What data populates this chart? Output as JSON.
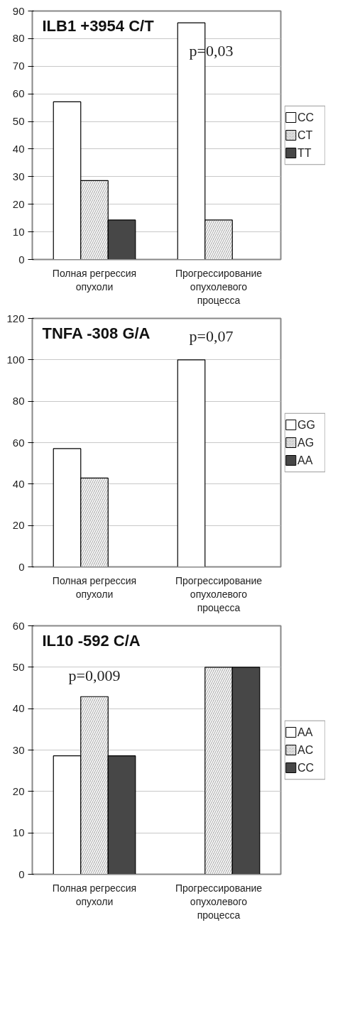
{
  "chart_data": [
    {
      "type": "bar",
      "title": "ILB1 +3954 C/T",
      "categories": [
        "Полная регрессия опухоли",
        "Прогрессирование опухолевого процесса"
      ],
      "series": [
        {
          "name": "CC",
          "color": "#ffffff",
          "values": [
            57.1,
            85.7
          ]
        },
        {
          "name": "CT",
          "color": "#b4b4b4",
          "values": [
            28.6,
            14.3
          ]
        },
        {
          "name": "TT",
          "color": "#474747",
          "values": [
            14.3,
            0
          ]
        }
      ],
      "ylim": [
        0,
        90
      ],
      "yticks": [
        0,
        10,
        20,
        30,
        40,
        50,
        60,
        70,
        80,
        90
      ],
      "grid": "y",
      "legend": "right",
      "annotations": [
        "p=0,03"
      ]
    },
    {
      "type": "bar",
      "title": "TNFA -308 G/A",
      "categories": [
        "Полная регрессия опухоли",
        "Прогрессирование опухолевого процесса"
      ],
      "series": [
        {
          "name": "GG",
          "color": "#ffffff",
          "values": [
            57.1,
            100
          ]
        },
        {
          "name": "AG",
          "color": "#b4b4b4",
          "values": [
            42.9,
            0
          ]
        },
        {
          "name": "AA",
          "color": "#474747",
          "values": [
            0,
            0
          ]
        }
      ],
      "ylim": [
        0,
        120
      ],
      "yticks": [
        0,
        20,
        40,
        60,
        80,
        100,
        120
      ],
      "grid": "y",
      "legend": "right",
      "annotations": [
        "p=0,07"
      ]
    },
    {
      "type": "bar",
      "title": "IL10 -592 C/A",
      "categories": [
        "Полная регрессия опухоли",
        "Прогрессирование опухолевого процесса"
      ],
      "series": [
        {
          "name": "AA",
          "color": "#ffffff",
          "values": [
            28.6,
            0
          ]
        },
        {
          "name": "AC",
          "color": "#b4b4b4",
          "values": [
            42.9,
            50
          ]
        },
        {
          "name": "CC",
          "color": "#474747",
          "values": [
            28.6,
            50
          ]
        }
      ],
      "ylim": [
        0,
        60
      ],
      "yticks": [
        0,
        10,
        20,
        30,
        40,
        50,
        60
      ],
      "grid": "y",
      "legend": "right",
      "annotations": [
        "p=0,009"
      ]
    }
  ]
}
